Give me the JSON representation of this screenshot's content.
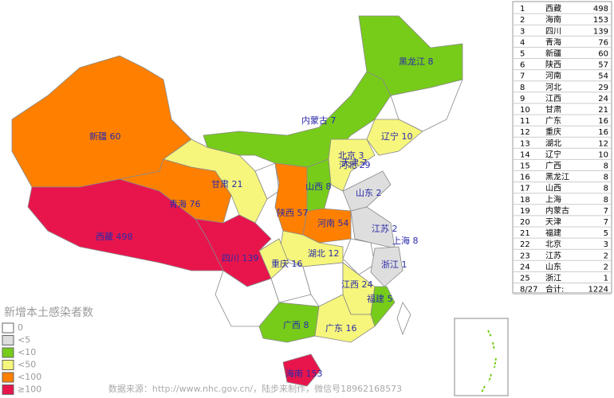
{
  "map": {
    "title": "新增本土感染者数",
    "source": "数据来源：http://www.nhc.gov.cn/，陆步来制作，微信号18962168573",
    "legend": [
      {
        "label": "0",
        "color": "#ffffff"
      },
      {
        "label": "<5",
        "color": "#dedede"
      },
      {
        "label": "<10",
        "color": "#77cc1a"
      },
      {
        "label": "<50",
        "color": "#f6f67c"
      },
      {
        "label": "<100",
        "color": "#ff8000"
      },
      {
        "label": "≥100",
        "color": "#e8154c"
      }
    ]
  },
  "table": {
    "rows": [
      [
        "1",
        "西藏",
        "498"
      ],
      [
        "2",
        "海南",
        "153"
      ],
      [
        "3",
        "四川",
        "139"
      ],
      [
        "4",
        "青海",
        "76"
      ],
      [
        "5",
        "新疆",
        "60"
      ],
      [
        "6",
        "陕西",
        "57"
      ],
      [
        "7",
        "河南",
        "54"
      ],
      [
        "8",
        "河北",
        "29"
      ],
      [
        "9",
        "江西",
        "24"
      ],
      [
        "10",
        "甘肃",
        "21"
      ],
      [
        "11",
        "广东",
        "16"
      ],
      [
        "12",
        "重庆",
        "16"
      ],
      [
        "13",
        "湖北",
        "12"
      ],
      [
        "14",
        "辽宁",
        "10"
      ],
      [
        "15",
        "广西",
        "8"
      ],
      [
        "16",
        "黑龙江",
        "8"
      ],
      [
        "17",
        "山西",
        "8"
      ],
      [
        "18",
        "上海",
        "8"
      ],
      [
        "19",
        "内蒙古",
        "7"
      ],
      [
        "20",
        "天津",
        "7"
      ],
      [
        "21",
        "福建",
        "5"
      ],
      [
        "22",
        "北京",
        "3"
      ],
      [
        "23",
        "江苏",
        "2"
      ],
      [
        "24",
        "山东",
        "2"
      ],
      [
        "25",
        "浙江",
        "1"
      ]
    ],
    "footer": [
      "8/27",
      "合计:",
      "1224"
    ]
  }
}
